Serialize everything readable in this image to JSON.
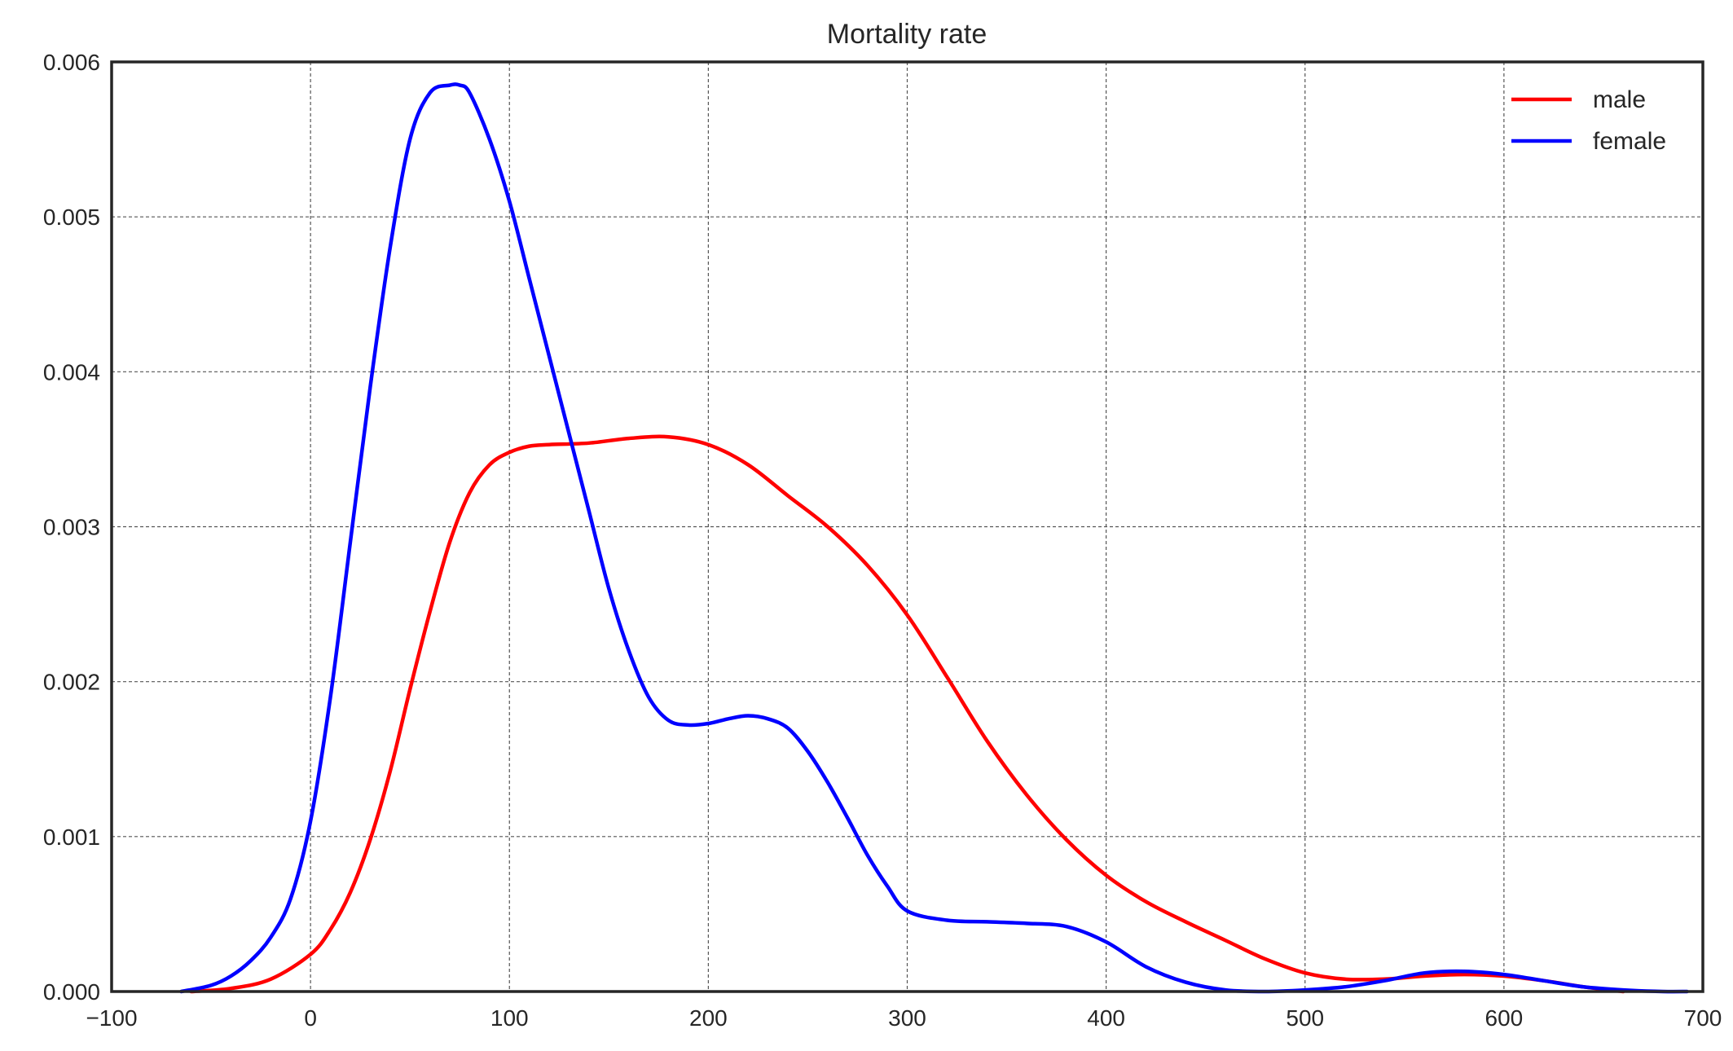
{
  "chart_data": {
    "type": "line",
    "title": "Mortality rate",
    "xlabel": "",
    "ylabel": "",
    "xlim": [
      -100,
      700
    ],
    "ylim": [
      0,
      0.006
    ],
    "x_ticks": [
      -100,
      0,
      100,
      200,
      300,
      400,
      500,
      600,
      700
    ],
    "x_tick_labels": [
      "−100",
      "0",
      "100",
      "200",
      "300",
      "400",
      "500",
      "600",
      "700"
    ],
    "y_ticks": [
      0,
      0.001,
      0.002,
      0.003,
      0.004,
      0.005,
      0.006
    ],
    "y_tick_labels": [
      "0.000",
      "0.001",
      "0.002",
      "0.003",
      "0.004",
      "0.005",
      "0.006"
    ],
    "grid": true,
    "legend": "top-right",
    "series": [
      {
        "name": "male",
        "color": "#ff0000",
        "x": [
          -60,
          -40,
          -20,
          0,
          10,
          20,
          30,
          40,
          50,
          60,
          70,
          80,
          90,
          100,
          110,
          120,
          140,
          160,
          180,
          200,
          220,
          240,
          260,
          280,
          300,
          320,
          340,
          360,
          380,
          400,
          420,
          440,
          460,
          480,
          500,
          520,
          540,
          560,
          580,
          600,
          620,
          640,
          660
        ],
        "y": [
          0.0,
          2e-05,
          8e-05,
          0.00024,
          0.0004,
          0.00064,
          0.00098,
          0.00142,
          0.00195,
          0.00245,
          0.0029,
          0.00322,
          0.0034,
          0.00348,
          0.00352,
          0.00353,
          0.00354,
          0.00357,
          0.00358,
          0.00353,
          0.0034,
          0.0032,
          0.003,
          0.00275,
          0.00243,
          0.00203,
          0.00162,
          0.00127,
          0.00098,
          0.00075,
          0.00058,
          0.00045,
          0.00033,
          0.00021,
          0.00012,
          8e-05,
          8e-05,
          0.0001,
          0.00011,
          0.0001,
          7e-05,
          3e-05,
          0.0
        ]
      },
      {
        "name": "female",
        "color": "#0000ff",
        "x": [
          -65,
          -50,
          -40,
          -30,
          -20,
          -10,
          0,
          10,
          20,
          30,
          40,
          50,
          60,
          70,
          75,
          80,
          90,
          100,
          110,
          120,
          130,
          140,
          150,
          160,
          170,
          180,
          190,
          200,
          210,
          220,
          230,
          240,
          250,
          260,
          270,
          280,
          290,
          300,
          320,
          340,
          360,
          380,
          400,
          420,
          440,
          460,
          480,
          500,
          520,
          540,
          560,
          580,
          600,
          620,
          640,
          660,
          680,
          692
        ],
        "y": [
          0.0,
          4e-05,
          0.0001,
          0.0002,
          0.00035,
          0.0006,
          0.0011,
          0.0019,
          0.0029,
          0.0039,
          0.0048,
          0.0055,
          0.0058,
          0.00585,
          0.00585,
          0.0058,
          0.0055,
          0.0051,
          0.0046,
          0.0041,
          0.0036,
          0.0031,
          0.0026,
          0.0022,
          0.0019,
          0.00175,
          0.00172,
          0.00173,
          0.00176,
          0.00178,
          0.00176,
          0.0017,
          0.00155,
          0.00135,
          0.00112,
          0.00088,
          0.00068,
          0.00052,
          0.00046,
          0.00045,
          0.00044,
          0.00042,
          0.00032,
          0.00016,
          6e-05,
          1e-05,
          0.0,
          1e-05,
          3e-05,
          7e-05,
          0.00012,
          0.00013,
          0.00011,
          7e-05,
          3e-05,
          1e-05,
          0.0,
          0.0
        ]
      }
    ]
  }
}
